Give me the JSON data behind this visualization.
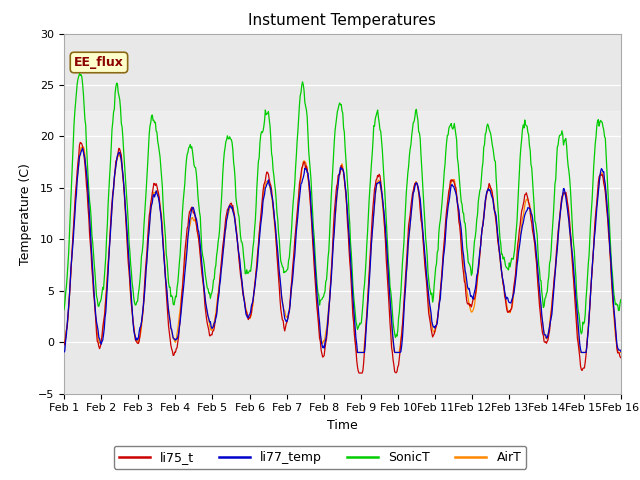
{
  "title": "Instument Temperatures",
  "xlabel": "Time",
  "ylabel": "Temperature (C)",
  "ylim": [
    -5,
    30
  ],
  "annotation_text": "EE_flux",
  "annotation_color": "#8B0000",
  "annotation_bg": "#FFFFCC",
  "fig_facecolor": "#FFFFFF",
  "plot_facecolor": "#E8E8E8",
  "colors": {
    "li75_t": "#CC0000",
    "li77_temp": "#0000CC",
    "SonicT": "#00CC00",
    "AirT": "#FF8800"
  },
  "legend_labels": [
    "li75_t",
    "li77_temp",
    "SonicT",
    "AirT"
  ],
  "num_points": 720,
  "yticks": [
    -5,
    0,
    5,
    10,
    15,
    20,
    25,
    30
  ]
}
